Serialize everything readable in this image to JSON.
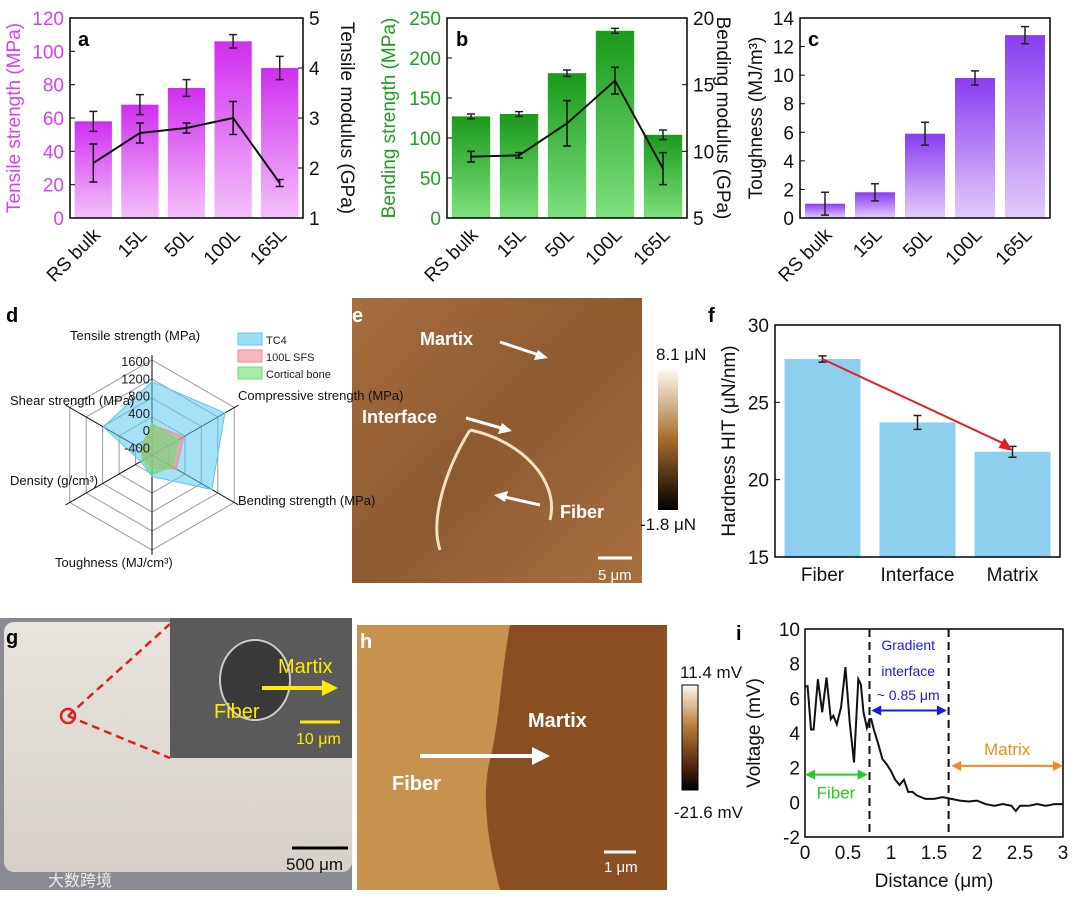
{
  "chart_data": [
    {
      "panel": "a",
      "type": "bar",
      "categories": [
        "RS bulk",
        "15L",
        "50L",
        "100L",
        "165L"
      ],
      "ylabel": "Tensile strength (MPa)",
      "y2label": "Tensile modulus (GPa)",
      "ylim": [
        0,
        120
      ],
      "y2lim": [
        1,
        5
      ],
      "yticks": [
        0,
        20,
        40,
        60,
        80,
        100,
        120
      ],
      "y2ticks": [
        1,
        2,
        3,
        4,
        5
      ],
      "series": [
        {
          "name": "Tensile strength",
          "values": [
            58,
            68,
            78,
            106,
            90
          ],
          "errors": [
            6,
            6,
            5,
            4,
            7
          ]
        },
        {
          "name": "Tensile modulus",
          "axis": "right",
          "type": "line",
          "values": [
            2.1,
            2.7,
            2.8,
            3.0,
            1.7
          ],
          "errors": [
            0.38,
            0.2,
            0.1,
            0.33,
            0.07
          ]
        }
      ],
      "color": "#d940f0"
    },
    {
      "panel": "b",
      "type": "bar",
      "categories": [
        "RS bulk",
        "15L",
        "50L",
        "100L",
        "165L"
      ],
      "ylabel": "Bending strength (MPa)",
      "y2label": "Bending modulus (GPa)",
      "ylim": [
        0,
        250
      ],
      "y2lim": [
        5,
        20
      ],
      "yticks": [
        0,
        50,
        100,
        150,
        200,
        250
      ],
      "y2ticks": [
        5,
        10,
        15,
        20
      ],
      "series": [
        {
          "name": "Bending strength",
          "values": [
            127,
            130,
            181,
            234,
            104
          ],
          "errors": [
            3,
            3,
            4,
            3,
            6
          ]
        },
        {
          "name": "Bending modulus",
          "axis": "right",
          "type": "line",
          "values": [
            9.6,
            9.7,
            12.1,
            15.3,
            8.7
          ],
          "errors": [
            0.4,
            0.2,
            1.7,
            1.0,
            1.2
          ]
        }
      ],
      "color": "#1e9e1e"
    },
    {
      "panel": "c",
      "type": "bar",
      "categories": [
        "RS bulk",
        "15L",
        "50L",
        "100L",
        "165L"
      ],
      "ylabel": "Toughness (MJ/m³)",
      "ylim": [
        0,
        14
      ],
      "yticks": [
        0,
        2,
        4,
        6,
        8,
        10,
        12,
        14
      ],
      "series": [
        {
          "name": "Toughness",
          "values": [
            1.0,
            1.8,
            5.9,
            9.8,
            12.8
          ],
          "errors": [
            0.8,
            0.6,
            0.8,
            0.5,
            0.6
          ]
        }
      ],
      "color": "#9a4cf0"
    },
    {
      "panel": "d",
      "type": "radar",
      "axes": [
        "Tensile strength (MPa)",
        "Compressive strength (MPa)",
        "Bending strength (MPa)",
        "Toughness (MJ/cm³)",
        "Density (g/cm³)",
        "Shear strength (MPa)"
      ],
      "rlim": [
        -600,
        1600
      ],
      "rticks": [
        1600,
        1200,
        800,
        400,
        0,
        -400
      ],
      "series": [
        {
          "name": "TC4",
          "values": [
            1100,
            1350,
            1000,
            -100,
            -300,
            700
          ],
          "color": "#5bc8f0"
        },
        {
          "name": "100L SFS",
          "values": [
            100,
            250,
            50,
            -300,
            -400,
            -300
          ],
          "color": "#f08a96"
        },
        {
          "name": "Cortical bone",
          "values": [
            130,
            100,
            -50,
            -150,
            -350,
            -300
          ],
          "color": "#6ee06e"
        }
      ]
    },
    {
      "panel": "f",
      "type": "bar",
      "categories": [
        "Fiber",
        "Interface",
        "Matrix"
      ],
      "ylabel": "Hardness HIT (μN/nm)",
      "ylim": [
        15,
        30
      ],
      "yticks": [
        15,
        20,
        25,
        30
      ],
      "values": [
        27.8,
        23.7,
        21.8
      ],
      "errors": [
        0.2,
        0.45,
        0.35
      ],
      "color": "#8ccfee"
    },
    {
      "panel": "i",
      "type": "line",
      "xlabel": "Distance (μm)",
      "ylabel": "Voltage (mV)",
      "xlim": [
        0,
        3
      ],
      "ylim": [
        -2,
        10
      ],
      "xticks": [
        0.0,
        0.5,
        1.0,
        1.5,
        2.0,
        2.5,
        3.0
      ],
      "yticks": [
        -2,
        0,
        2,
        4,
        6,
        8,
        10
      ],
      "x": [
        0,
        0.03,
        0.07,
        0.1,
        0.15,
        0.2,
        0.25,
        0.3,
        0.33,
        0.37,
        0.42,
        0.47,
        0.52,
        0.57,
        0.62,
        0.65,
        0.68,
        0.72,
        0.75,
        0.77,
        0.8,
        0.85,
        0.9,
        0.95,
        1.0,
        1.05,
        1.1,
        1.15,
        1.2,
        1.25,
        1.3,
        1.4,
        1.5,
        1.6,
        1.7,
        1.8,
        1.9,
        2.0,
        2.1,
        2.2,
        2.3,
        2.4,
        2.45,
        2.5,
        2.6,
        2.7,
        2.8,
        2.9,
        3.0
      ],
      "y": [
        6.7,
        6.7,
        4.2,
        4.2,
        7.1,
        5.2,
        7.2,
        4.8,
        5.0,
        4.5,
        5.5,
        7.8,
        4.6,
        2.3,
        7.1,
        6.8,
        5.2,
        4.3,
        4.8,
        4.8,
        4.2,
        3.4,
        2.5,
        2.2,
        1.8,
        1.3,
        1.0,
        1.3,
        0.6,
        0.6,
        0.4,
        0.2,
        0.2,
        0.3,
        0.2,
        0.1,
        0.05,
        0.1,
        -0.1,
        -0.2,
        -0.1,
        -0.2,
        -0.5,
        -0.2,
        -0.2,
        -0.1,
        -0.2,
        -0.1,
        -0.1
      ],
      "dividers": [
        0.75,
        1.67
      ]
    }
  ],
  "labels": {
    "a": "a",
    "b": "b",
    "c": "c",
    "d": "d",
    "e": "e",
    "f": "f",
    "g": "g",
    "h": "h",
    "i": "i"
  },
  "panel_e": {
    "martix": "Martix",
    "interface": "Interface",
    "fiber": "Fiber",
    "cbar_max": "8.1 μN",
    "cbar_min": "-1.8 μN",
    "scale": "5 μm"
  },
  "panel_g": {
    "martix": "Martix",
    "fiber": "Fiber",
    "inset_scale": "10 μm",
    "scale": "500 μm",
    "watermark": "大数跨境"
  },
  "panel_h": {
    "martix": "Martix",
    "fiber": "Fiber",
    "cbar_max": "11.4 mV",
    "cbar_min": "-21.6 mV",
    "scale": "1 μm"
  },
  "panel_i": {
    "gradient1": "Gradient",
    "gradient2": "interface",
    "gradient3": "~ 0.85 μm",
    "matrix": "Matrix",
    "fiber": "Fiber"
  }
}
